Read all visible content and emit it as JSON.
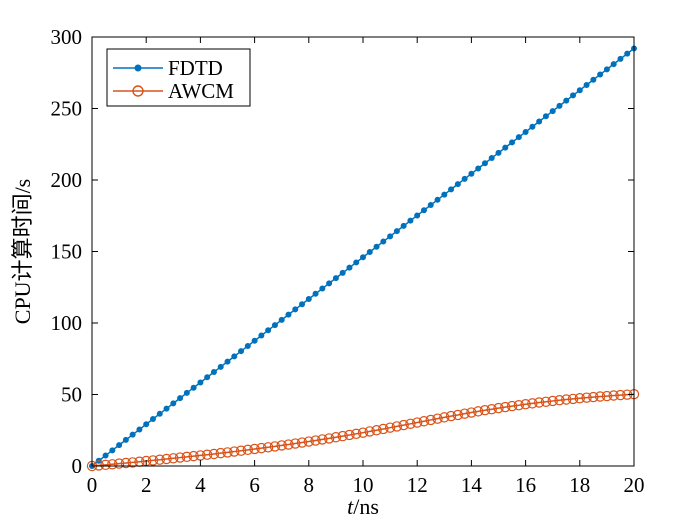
{
  "chart_data": {
    "type": "line",
    "title": "",
    "xlabel_italic": "t",
    "xlabel_rest": "/ns",
    "ylabel": "CPU计算时间/s",
    "xlim": [
      0,
      20
    ],
    "ylim": [
      0,
      300
    ],
    "xticks": [
      0,
      2,
      4,
      6,
      8,
      10,
      12,
      14,
      16,
      18,
      20
    ],
    "yticks": [
      0,
      50,
      100,
      150,
      200,
      250,
      300
    ],
    "grid": false,
    "legend_position": "top-left",
    "series": [
      {
        "name": "FDTD",
        "color": "#0072BD",
        "marker": "filled-dot",
        "x": [
          0,
          0.25,
          0.5,
          0.75,
          1,
          1.25,
          1.5,
          1.75,
          2,
          2.25,
          2.5,
          2.75,
          3,
          3.25,
          3.5,
          3.75,
          4,
          4.25,
          4.5,
          4.75,
          5,
          5.25,
          5.5,
          5.75,
          6,
          6.25,
          6.5,
          6.75,
          7,
          7.25,
          7.5,
          7.75,
          8,
          8.25,
          8.5,
          8.75,
          9,
          9.25,
          9.5,
          9.75,
          10,
          10.25,
          10.5,
          10.75,
          11,
          11.25,
          11.5,
          11.75,
          12,
          12.25,
          12.5,
          12.75,
          13,
          13.25,
          13.5,
          13.75,
          14,
          14.25,
          14.5,
          14.75,
          15,
          15.25,
          15.5,
          15.75,
          16,
          16.25,
          16.5,
          16.75,
          17,
          17.25,
          17.5,
          17.75,
          18,
          18.25,
          18.5,
          18.75,
          19,
          19.25,
          19.5,
          19.75,
          20
        ],
        "y": [
          0,
          3.65,
          7.3,
          10.95,
          14.6,
          18.25,
          21.9,
          25.55,
          29.2,
          32.85,
          36.5,
          40.15,
          43.8,
          47.45,
          51.1,
          54.75,
          58.4,
          62.05,
          65.7,
          69.35,
          73,
          76.65,
          80.3,
          83.95,
          87.6,
          91.25,
          94.9,
          98.55,
          102.2,
          105.85,
          109.5,
          113.15,
          116.8,
          120.45,
          124.1,
          127.75,
          131.4,
          135.05,
          138.7,
          142.35,
          146,
          149.65,
          153.3,
          156.95,
          160.6,
          164.25,
          167.9,
          171.55,
          175.2,
          178.85,
          182.5,
          186.15,
          189.8,
          193.45,
          197.1,
          200.75,
          204.4,
          208.05,
          211.7,
          215.35,
          219,
          222.65,
          226.3,
          229.95,
          233.6,
          237.25,
          240.9,
          244.55,
          248.2,
          251.85,
          255.5,
          259.15,
          262.8,
          266.45,
          270.1,
          273.75,
          277.4,
          281.05,
          284.7,
          288.35,
          292
        ]
      },
      {
        "name": "AWCM",
        "color": "#D95319",
        "marker": "open-circle",
        "x": [
          0,
          0.25,
          0.5,
          0.75,
          1,
          1.25,
          1.5,
          1.75,
          2,
          2.25,
          2.5,
          2.75,
          3,
          3.25,
          3.5,
          3.75,
          4,
          4.25,
          4.5,
          4.75,
          5,
          5.25,
          5.5,
          5.75,
          6,
          6.25,
          6.5,
          6.75,
          7,
          7.25,
          7.5,
          7.75,
          8,
          8.25,
          8.5,
          8.75,
          9,
          9.25,
          9.5,
          9.75,
          10,
          10.25,
          10.5,
          10.75,
          11,
          11.25,
          11.5,
          11.75,
          12,
          12.25,
          12.5,
          12.75,
          13,
          13.25,
          13.5,
          13.75,
          14,
          14.25,
          14.5,
          14.75,
          15,
          15.25,
          15.5,
          15.75,
          16,
          16.25,
          16.5,
          16.75,
          17,
          17.25,
          17.5,
          17.75,
          18,
          18.25,
          18.5,
          18.75,
          19,
          19.25,
          19.5,
          19.75,
          20
        ],
        "y": [
          0,
          0.4,
          0.8,
          1.2,
          1.7,
          2.1,
          2.5,
          3.0,
          3.5,
          3.9,
          4.4,
          4.9,
          5.4,
          5.9,
          6.4,
          6.9,
          7.4,
          7.9,
          8.4,
          9.0,
          9.5,
          10.1,
          10.7,
          11.3,
          11.9,
          12.5,
          13.1,
          13.7,
          14.4,
          15.0,
          15.7,
          16.4,
          17.1,
          17.8,
          18.6,
          19.3,
          20.1,
          20.9,
          21.7,
          22.5,
          23.3,
          24.2,
          25.0,
          25.9,
          26.8,
          27.7,
          28.6,
          29.5,
          30.4,
          31.3,
          32.2,
          33.1,
          34.0,
          34.9,
          35.7,
          36.6,
          37.4,
          38.2,
          39.0,
          39.7,
          40.5,
          41.2,
          41.9,
          42.5,
          43.2,
          43.8,
          44.4,
          44.9,
          45.5,
          46.0,
          46.5,
          46.9,
          47.4,
          47.8,
          48.2,
          48.6,
          48.9,
          49.3,
          49.6,
          49.9,
          50.2
        ]
      }
    ]
  }
}
